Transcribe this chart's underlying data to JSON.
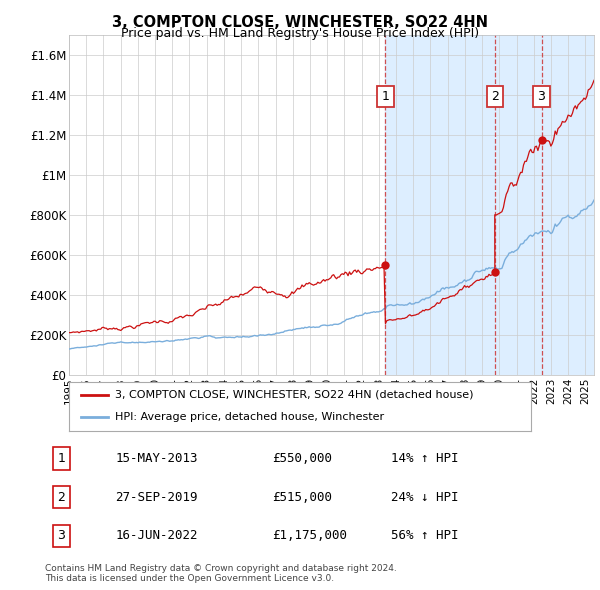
{
  "title": "3, COMPTON CLOSE, WINCHESTER, SO22 4HN",
  "subtitle": "Price paid vs. HM Land Registry's House Price Index (HPI)",
  "xlim_start": 1995.0,
  "xlim_end": 2025.5,
  "ylim": [
    0,
    1700000
  ],
  "yticks": [
    0,
    200000,
    400000,
    600000,
    800000,
    1000000,
    1200000,
    1400000,
    1600000
  ],
  "ytick_labels": [
    "£0",
    "£200K",
    "£400K",
    "£600K",
    "£800K",
    "£1M",
    "£1.2M",
    "£1.4M",
    "£1.6M"
  ],
  "hpi_color": "#7aaedc",
  "price_color": "#cc1111",
  "dashed_line_color": "#cc3333",
  "shade_color": "#ddeeff",
  "legend_label_red": "3, COMPTON CLOSE, WINCHESTER, SO22 4HN (detached house)",
  "legend_label_blue": "HPI: Average price, detached house, Winchester",
  "transactions": [
    {
      "num": "1",
      "year": 2013.37,
      "price": 550000,
      "date": "15-MAY-2013",
      "hpi_str": "14% ↑ HPI"
    },
    {
      "num": "2",
      "year": 2019.74,
      "price": 515000,
      "date": "27-SEP-2019",
      "hpi_str": "24% ↓ HPI"
    },
    {
      "num": "3",
      "year": 2022.45,
      "price": 1175000,
      "date": "16-JUN-2022",
      "hpi_str": "56% ↑ HPI"
    }
  ],
  "footnote": "Contains HM Land Registry data © Crown copyright and database right 2024.\nThis data is licensed under the Open Government Licence v3.0.",
  "bg_color": "#ffffff",
  "grid_color": "#cccccc"
}
